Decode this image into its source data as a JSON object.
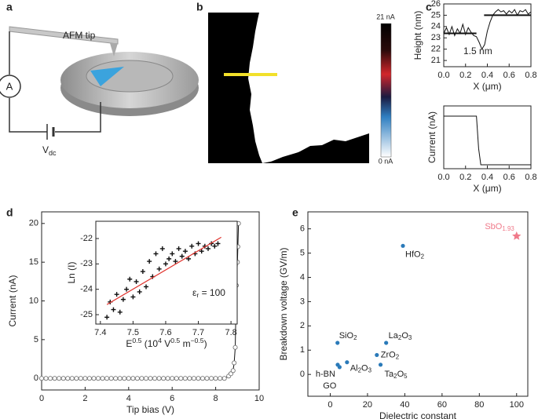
{
  "panel_labels": [
    "a",
    "b",
    "c",
    "d",
    "e"
  ],
  "schematic": {
    "tip_label": "AFM tip",
    "ammeter": "A",
    "source": [
      "V",
      "dc"
    ]
  },
  "current_map": {
    "colorbar_max": "21 nA",
    "colorbar_min": "0 nA"
  },
  "chart_data": [
    {
      "type": "line",
      "x_label": "X (μm)",
      "y_label": "Height (nm)",
      "xlim": [
        0,
        0.8
      ],
      "ylim": [
        20.45,
        26
      ],
      "xticks": [
        {
          "value": 0,
          "label": "0.0"
        },
        0.2,
        0.4,
        0.6,
        0.8
      ],
      "yticks": [
        21,
        22,
        23,
        24,
        25,
        26
      ],
      "annotation": "1.5 nm",
      "series": [
        {
          "color": "#111111",
          "width": 1,
          "x": [
            0,
            0.025,
            0.05,
            0.075,
            0.1,
            0.125,
            0.15,
            0.175,
            0.2,
            0.225,
            0.25,
            0.275,
            0.3,
            0.325,
            0.35,
            0.375,
            0.4,
            0.425,
            0.45,
            0.475,
            0.5,
            0.525,
            0.55,
            0.575,
            0.6,
            0.625,
            0.65,
            0.675,
            0.7,
            0.725,
            0.75,
            0.775,
            0.8
          ],
          "values": [
            23.4,
            23.9,
            23.3,
            24.0,
            23.2,
            23.8,
            23.4,
            24.2,
            23.3,
            23.9,
            23.5,
            23.2,
            23.1,
            22.6,
            22.0,
            22.4,
            23.6,
            24.4,
            25.0,
            25.3,
            25.5,
            25.3,
            25.4,
            25.1,
            25.4,
            25.2,
            25.5,
            25.0,
            25.4,
            25.3,
            25.5,
            25.1,
            25.3
          ]
        },
        {
          "color": "#111111",
          "width": 2,
          "x": [
            0,
            0.3
          ],
          "values": [
            23.4,
            23.4
          ]
        },
        {
          "color": "#111111",
          "width": 2,
          "x": [
            0.37,
            0.8
          ],
          "values": [
            25,
            25
          ]
        }
      ]
    },
    {
      "type": "line",
      "x_label": "X (μm)",
      "y_label": "Current (nA)",
      "xlim": [
        0,
        0.8
      ],
      "ylim": [
        -1.7,
        25.4
      ],
      "xticks": [
        {
          "value": 0,
          "label": "0.0"
        },
        0.2,
        0.4,
        0.6,
        0.8
      ],
      "series": [
        {
          "color": "#111111",
          "width": 1,
          "x": [
            0,
            0.3,
            0.32,
            0.34,
            0.8
          ],
          "values": [
            21,
            21,
            7,
            0,
            0
          ]
        }
      ]
    },
    {
      "type": "line",
      "x_label": "Tip bias (V)",
      "y_label": "Current (nA)",
      "xlim": [
        0,
        10
      ],
      "ylim": [
        -1.5,
        21.5
      ],
      "xticks": [
        0,
        2,
        4,
        6,
        8,
        10
      ],
      "yticks": [
        0,
        5,
        10,
        15,
        20
      ],
      "series": [
        {
          "color": "#111111",
          "width": 1,
          "marker": "open-circle",
          "x": [
            0,
            0.2,
            0.4,
            0.6,
            0.8,
            1,
            1.2,
            1.4,
            1.6,
            1.8,
            2,
            2.2,
            2.4,
            2.6,
            2.8,
            3,
            3.2,
            3.4,
            3.6,
            3.8,
            4,
            4.2,
            4.4,
            4.6,
            4.8,
            5,
            5.2,
            5.4,
            5.6,
            5.8,
            6,
            6.2,
            6.4,
            6.6,
            6.8,
            7,
            7.2,
            7.4,
            7.6,
            7.8,
            8,
            8.2,
            8.4,
            8.6,
            8.7,
            8.8,
            8.85,
            8.9,
            8.95,
            9.0,
            9.02,
            9.05
          ],
          "values": [
            0,
            0,
            0,
            0,
            0,
            0,
            0,
            0,
            0,
            0,
            0,
            0,
            0,
            0,
            0,
            0,
            0,
            0,
            0,
            0,
            0,
            0,
            0,
            0,
            0,
            0,
            0,
            0,
            0,
            0,
            0,
            0,
            0,
            0,
            0,
            0,
            0,
            0,
            0,
            0,
            0,
            0,
            0,
            0.3,
            0.6,
            1,
            2,
            4,
            12,
            15,
            17,
            20
          ]
        }
      ]
    },
    {
      "type": "scatter",
      "x_label": [
        "E",
        "0.5",
        " (10",
        "4",
        " V",
        "0.5",
        " m",
        "−0.5",
        ")"
      ],
      "y_label": "Ln (I)",
      "xlim": [
        7.386,
        7.819
      ],
      "ylim": [
        -25.37,
        -21.32
      ],
      "xticks": [
        7.4,
        7.5,
        7.6,
        7.7,
        7.8
      ],
      "yticks": [
        -25,
        -24,
        -23,
        -22
      ],
      "annotation": [
        "ε",
        "r",
        " = 100"
      ],
      "series": [
        {
          "color": "#111111",
          "marker": "plus",
          "x": [
            7.42,
            7.43,
            7.44,
            7.45,
            7.46,
            7.47,
            7.48,
            7.49,
            7.5,
            7.51,
            7.52,
            7.53,
            7.54,
            7.55,
            7.56,
            7.57,
            7.58,
            7.59,
            7.6,
            7.61,
            7.62,
            7.63,
            7.64,
            7.65,
            7.66,
            7.67,
            7.68,
            7.69,
            7.7,
            7.71,
            7.72,
            7.73,
            7.74,
            7.75,
            7.76
          ],
          "values": [
            -25.1,
            -24.5,
            -24.8,
            -24.2,
            -24.9,
            -24.4,
            -24.0,
            -23.6,
            -24.3,
            -23.7,
            -24.1,
            -23.3,
            -23.9,
            -22.9,
            -23.5,
            -22.6,
            -23.2,
            -22.4,
            -23.0,
            -22.8,
            -22.6,
            -22.9,
            -22.4,
            -22.7,
            -22.5,
            -22.8,
            -22.3,
            -22.6,
            -22.2,
            -22.5,
            -22.3,
            -22.4,
            -22.2,
            -22.3,
            -22.2
          ]
        },
        {
          "color": "#e0302a",
          "width": 1.2,
          "line": true,
          "x": [
            7.42,
            7.77
          ],
          "values": [
            -24.6,
            -21.95
          ]
        }
      ]
    },
    {
      "type": "scatter",
      "x_label": "Dielectric constant",
      "y_label": "Breakdown voltage (GV/m)",
      "xlim": [
        -12,
        106
      ],
      "ylim": [
        -0.9,
        6.7
      ],
      "xticks": [
        0,
        20,
        40,
        60,
        80,
        100
      ],
      "yticks": [
        0,
        1,
        2,
        3,
        4,
        5,
        6
      ],
      "series": [
        {
          "color": "#2a7ab9",
          "marker": "dot",
          "x": [
            3.9,
            4,
            5,
            9,
            30,
            25,
            27,
            39
          ],
          "values": [
            1.3,
            0.4,
            0.3,
            0.5,
            1.3,
            0.8,
            0.4,
            5.3
          ],
          "point_labels": [
            [
              "SiO",
              "2"
            ],
            [
              "h-BN"
            ],
            [
              "GO"
            ],
            [
              "Al",
              "2",
              "O",
              "3"
            ],
            [
              "La",
              "2",
              "O",
              "3"
            ],
            [
              "ZrO",
              "2"
            ],
            [
              "Ta",
              "2",
              "O",
              "5"
            ],
            [
              "HfO",
              "2"
            ]
          ]
        },
        {
          "color": "#f07a8a",
          "marker": "star",
          "x": [
            100
          ],
          "values": [
            5.7
          ],
          "point_labels": [
            [
              "SbO",
              "1.93"
            ]
          ]
        }
      ]
    }
  ]
}
